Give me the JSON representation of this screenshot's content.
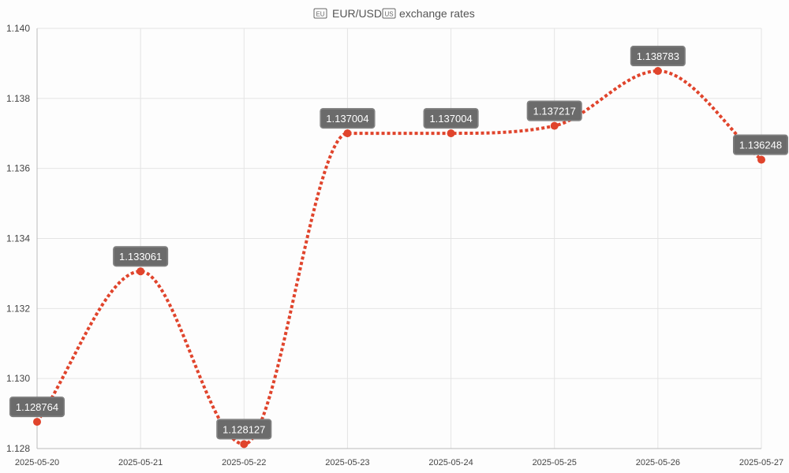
{
  "chart_data": {
    "type": "line",
    "title": "EUR/USD exchange rates",
    "title_icons": [
      "eu-flag-icon",
      "us-flag-icon"
    ],
    "title_icon_texts": [
      "EU",
      "US"
    ],
    "xlabel": "",
    "ylabel": "",
    "x": [
      "2025-05-20",
      "2025-05-21",
      "2025-05-22",
      "2025-05-23",
      "2025-05-24",
      "2025-05-25",
      "2025-05-26",
      "2025-05-27"
    ],
    "series": [
      {
        "values": [
          1.128764,
          1.133061,
          1.128127,
          1.137004,
          1.137004,
          1.137217,
          1.138783,
          1.136248
        ],
        "data_labels": [
          "1.128764",
          "1.133061",
          "1.128127",
          "1.137004",
          "1.137004",
          "1.137217",
          "1.138783",
          "1.136248"
        ],
        "color": "#e0442c",
        "line_style": "dotted",
        "smooth": true
      }
    ],
    "ylim": [
      1.128,
      1.14
    ],
    "yticks": [
      "1.128",
      "1.130",
      "1.132",
      "1.134",
      "1.136",
      "1.138",
      "1.140"
    ],
    "ytick_values": [
      1.128,
      1.13,
      1.132,
      1.134,
      1.136,
      1.138,
      1.14
    ],
    "grid": true,
    "legend": "none",
    "colors": {
      "line": "#e0442c",
      "point": "#e0442c",
      "label_bg": "#6b6b6b",
      "label_text": "#ffffff",
      "grid": "#e4e4e4",
      "axis": "#bbbbbb"
    }
  }
}
